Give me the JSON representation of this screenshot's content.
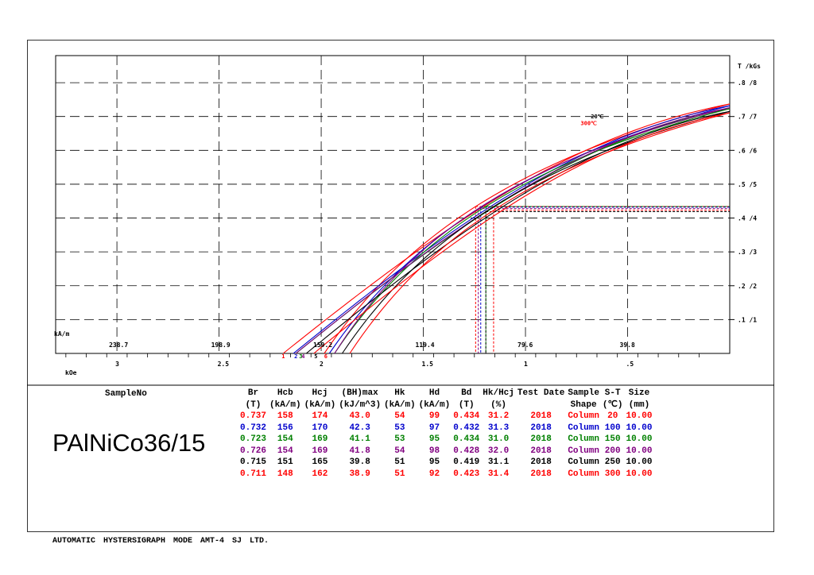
{
  "chart_data": {
    "type": "line",
    "title": "",
    "x_bottom": {
      "label": "kOe",
      "ticks": [
        "3",
        "2.5",
        "2",
        "1.5",
        "1",
        ".5"
      ],
      "range": [
        3.3,
        0
      ]
    },
    "x_top": {
      "label": "kA/m",
      "ticks": [
        "238.7",
        "198.9",
        "159.2",
        "119.4",
        "79.6",
        "39.8"
      ]
    },
    "y_right": {
      "label": "T /kGs",
      "ticks": [
        ".1 /1",
        ".2 /2",
        ".3 /3",
        ".4 /4",
        ".5 /5",
        ".6 /6",
        ".7 /7",
        ".8 /8"
      ],
      "range": [
        0,
        0.88
      ]
    },
    "grid": true,
    "annotations": [
      "20℃",
      "300℃"
    ],
    "curve_markers": [
      "1",
      "2",
      "3",
      "4",
      "5",
      "6"
    ],
    "series": [
      {
        "name": "1",
        "color": "#ff0000",
        "Br": 0.737,
        "Hcb_kOe": 1.985,
        "Hcj_kOe": 2.186,
        "Hd_kOe": 1.244,
        "Bd": 0.434
      },
      {
        "name": "2",
        "color": "#0000cc",
        "Br": 0.732,
        "Hcb_kOe": 1.96,
        "Hcj_kOe": 2.136,
        "Hd_kOe": 1.219,
        "Bd": 0.432
      },
      {
        "name": "3",
        "color": "#008000",
        "Br": 0.723,
        "Hcb_kOe": 1.935,
        "Hcj_kOe": 2.124,
        "Hd_kOe": 1.194,
        "Bd": 0.434
      },
      {
        "name": "4",
        "color": "#800080",
        "Br": 0.726,
        "Hcb_kOe": 1.935,
        "Hcj_kOe": 2.124,
        "Hd_kOe": 1.231,
        "Bd": 0.428
      },
      {
        "name": "5",
        "color": "#000000",
        "Br": 0.715,
        "Hcb_kOe": 1.897,
        "Hcj_kOe": 2.073,
        "Hd_kOe": 1.194,
        "Bd": 0.419
      },
      {
        "name": "6",
        "color": "#ff0000",
        "Br": 0.711,
        "Hcb_kOe": 1.86,
        "Hcj_kOe": 2.036,
        "Hd_kOe": 1.156,
        "Bd": 0.423
      }
    ]
  },
  "sample": {
    "label": "SampleNo",
    "name": "PAlNiCo36/15"
  },
  "table": {
    "headers": [
      [
        "Br",
        "(T)"
      ],
      [
        "Hcb",
        "(kA/m)"
      ],
      [
        "Hcj",
        "(kA/m)"
      ],
      [
        "(BH)max",
        "(kJ/m^3)"
      ],
      [
        "Hk",
        "(kA/m)"
      ],
      [
        "Hd",
        "(kA/m)"
      ],
      [
        "Bd",
        "(T)"
      ],
      [
        "Hk/Hcj",
        "(%)"
      ],
      [
        "Test Date",
        ""
      ],
      [
        "Sample",
        "Shape"
      ],
      [
        "S-T",
        "(℃)"
      ],
      [
        "Size",
        "(mm)"
      ]
    ],
    "rows": [
      {
        "color": "#ff0000",
        "cells": [
          "0.737",
          "158",
          "174",
          "43.0",
          "54",
          "99",
          "0.434",
          "31.2",
          "2018",
          "Column",
          "20",
          "10.00"
        ]
      },
      {
        "color": "#0000cc",
        "cells": [
          "0.732",
          "156",
          "170",
          "42.3",
          "53",
          "97",
          "0.432",
          "31.3",
          "2018",
          "Column",
          "100",
          "10.00"
        ]
      },
      {
        "color": "#008000",
        "cells": [
          "0.723",
          "154",
          "169",
          "41.1",
          "53",
          "95",
          "0.434",
          "31.0",
          "2018",
          "Column",
          "150",
          "10.00"
        ]
      },
      {
        "color": "#800080",
        "cells": [
          "0.726",
          "154",
          "169",
          "41.8",
          "54",
          "98",
          "0.428",
          "32.0",
          "2018",
          "Column",
          "200",
          "10.00"
        ]
      },
      {
        "color": "#000000",
        "cells": [
          "0.715",
          "151",
          "165",
          "39.8",
          "51",
          "95",
          "0.419",
          "31.1",
          "2018",
          "Column",
          "250",
          "10.00"
        ]
      },
      {
        "color": "#ff0000",
        "cells": [
          "0.711",
          "148",
          "162",
          "38.9",
          "51",
          "92",
          "0.423",
          "31.4",
          "2018",
          "Column",
          "300",
          "10.00"
        ]
      }
    ]
  },
  "footer": "AUTOMATIC HYSTERSIGRAPH MODE AMT-4   SJ LTD."
}
